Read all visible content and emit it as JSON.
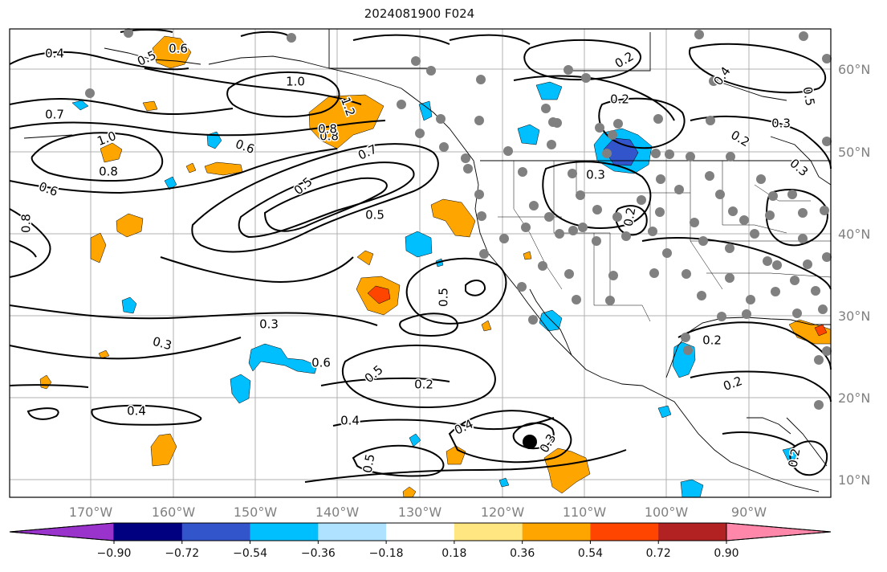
{
  "title": "2024081900 F024",
  "lon_ticks": [
    "170°W",
    "160°W",
    "150°W",
    "140°W",
    "130°W",
    "120°W",
    "110°W",
    "100°W",
    "90°W"
  ],
  "lat_ticks": [
    "60°N",
    "50°N",
    "40°N",
    "30°N",
    "20°N",
    "10°N"
  ],
  "colorbar": {
    "colors": [
      "#9933cc",
      "#000080",
      "#3355cc",
      "#00bfff",
      "#aee2ff",
      "#ffffff",
      "#ffe680",
      "#ffa500",
      "#ff4500",
      "#b22222",
      "#ff88aa"
    ],
    "ticks": [
      "−0.90",
      "−0.72",
      "−0.54",
      "−0.36",
      "−0.18",
      "0.18",
      "0.36",
      "0.54",
      "0.72",
      "0.90"
    ]
  },
  "contour_labels": [
    "0.4",
    "0.5",
    "0.6",
    "1.0",
    "0.7",
    "1.0",
    "0.8",
    "0.6",
    "0.8",
    "0.7",
    "1.2",
    "0.8",
    "0.6",
    "0.5",
    "0.8",
    "0.5",
    "0.2",
    "0.2",
    "0.3",
    "0.4",
    "0.5",
    "0.3",
    "0.2",
    "0.2",
    "0.3",
    "0.3",
    "0.3",
    "0.6",
    "0.5",
    "0.5",
    "0.2",
    "0.4",
    "0.4",
    "0.4",
    "0.5",
    "0.3",
    "0.2",
    "0.2",
    "0.2"
  ],
  "colors": {
    "land_points": "#808080",
    "contour": "#000000",
    "grid": "#b0b0b0"
  }
}
